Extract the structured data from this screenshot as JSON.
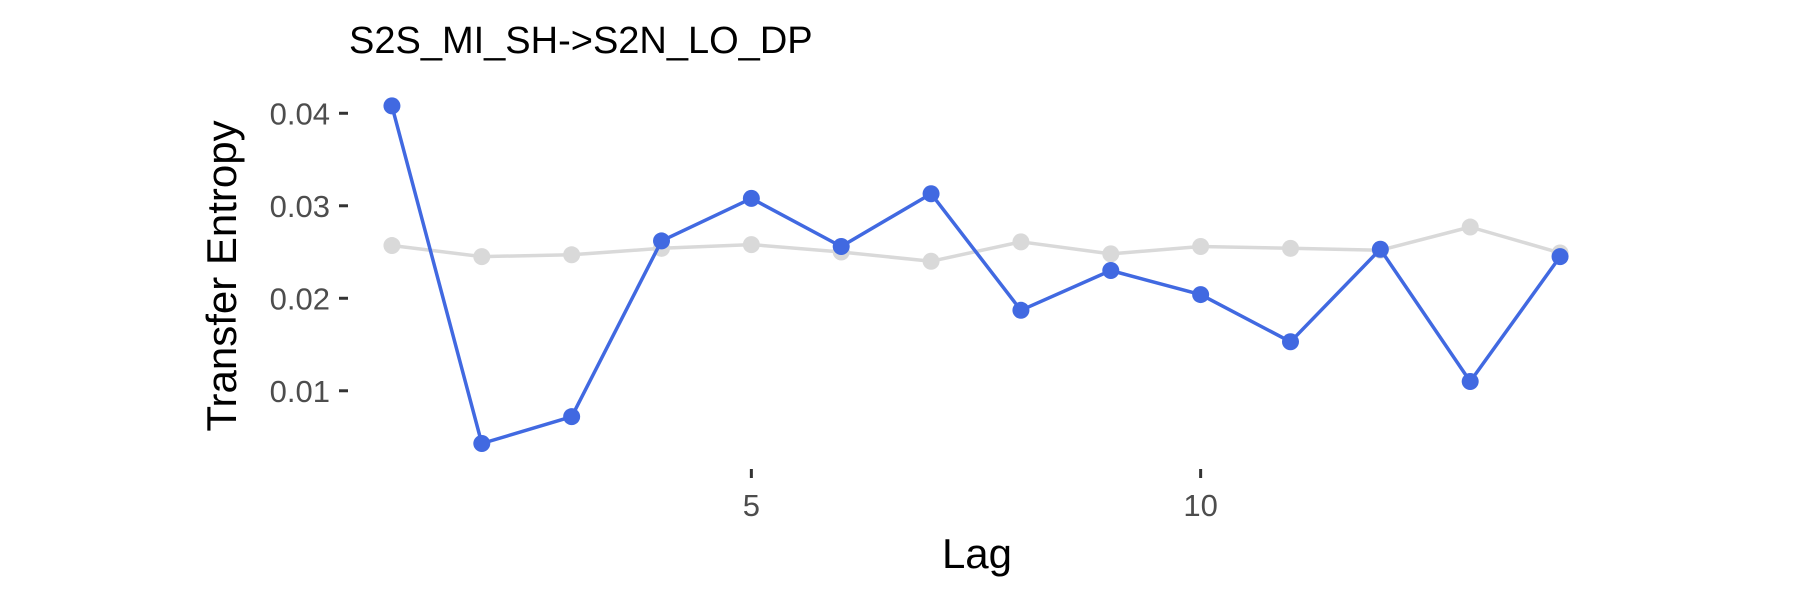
{
  "chart_data": {
    "type": "line",
    "title": "S2S_MI_SH->S2N_LO_DP",
    "xlabel": "Lag",
    "ylabel": "Transfer Entropy",
    "x": [
      1,
      2,
      3,
      4,
      5,
      6,
      7,
      8,
      9,
      10,
      11,
      12,
      13,
      14
    ],
    "xlim": [
      0.6,
      14.4
    ],
    "ylim": [
      0.0023,
      0.0423
    ],
    "x_ticks": [
      5,
      10
    ],
    "x_tick_labels": [
      "5",
      "10"
    ],
    "y_ticks": [
      0.01,
      0.02,
      0.03,
      0.04
    ],
    "y_tick_labels": [
      "0.01",
      "0.02",
      "0.03",
      "0.04"
    ],
    "grid": false,
    "legend": "none",
    "series": [
      {
        "color": "#d9d9d9",
        "values": [
          0.0257,
          0.0245,
          0.0247,
          0.0254,
          0.0258,
          0.025,
          0.024,
          0.0261,
          0.0248,
          0.0256,
          0.0254,
          0.0252,
          0.0277,
          0.0249
        ]
      },
      {
        "color": "#4169e1",
        "values": [
          0.0408,
          0.0043,
          0.0072,
          0.0262,
          0.0308,
          0.0256,
          0.0313,
          0.0187,
          0.023,
          0.0204,
          0.0153,
          0.0253,
          0.011,
          0.0245
        ]
      }
    ]
  }
}
